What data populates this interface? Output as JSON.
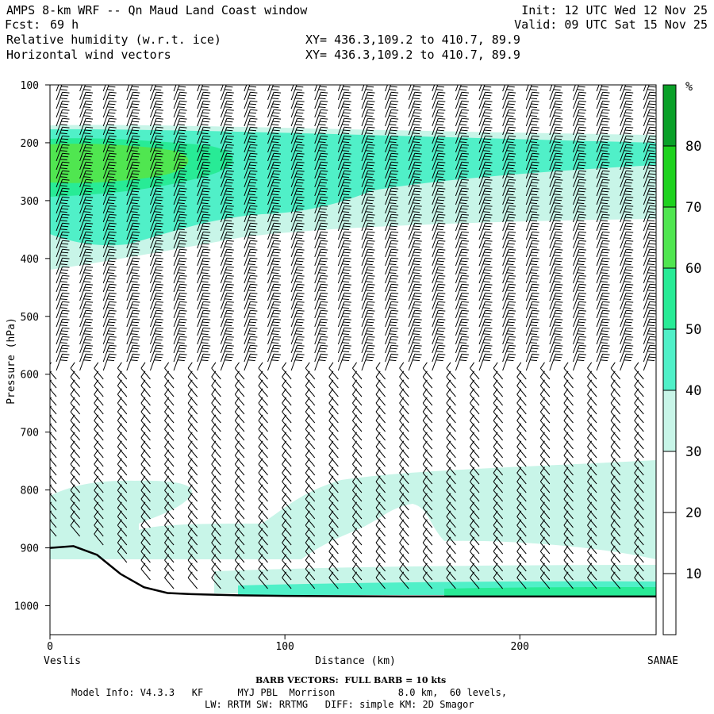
{
  "header": {
    "title": "AMPS 8-km WRF -- Qn Maud Land Coast window",
    "fcst_label": "Fcst:",
    "fcst_value": "69 h",
    "init": "Init: 12 UTC Wed 12 Nov 25",
    "valid": "Valid: 09 UTC Sat 15 Nov 25",
    "field1": "Relative humidity (w.r.t. ice)",
    "field1_xy": "XY= 436.3,109.2 to 410.7, 89.9",
    "field2": "Horizontal wind vectors",
    "field2_xy": "XY= 436.3,109.2 to 410.7, 89.9"
  },
  "footer": {
    "barb_note": "BARB VECTORS:  FULL BARB = 10 kts",
    "model_info_1": "Model Info: V4.3.3   KF      MYJ PBL  Morrison           8.0 km,  60 levels,",
    "model_info_2": "LW: RRTM SW: RRTMG   DIFF: simple KM: 2D Smagor"
  },
  "chart_data": {
    "type": "cross-section",
    "title": "Relative humidity (w.r.t. ice) and horizontal wind vectors",
    "xlabel": "Distance (km)",
    "ylabel": "Pressure (hPa)",
    "xlim": [
      0,
      258
    ],
    "ylim": [
      1050,
      100
    ],
    "x_ticks": [
      0,
      100,
      200
    ],
    "y_ticks": [
      100,
      200,
      300,
      400,
      500,
      600,
      700,
      800,
      900,
      1000
    ],
    "left_endpoint": "Veslis",
    "right_endpoint": "SANAE",
    "colorbar": {
      "unit": "%",
      "levels": [
        10,
        20,
        30,
        40,
        50,
        60,
        70,
        80
      ],
      "colors": [
        "#ffffff",
        "#ffffff",
        "#ffffff",
        "#c8f5e8",
        "#50f0c8",
        "#28eb96",
        "#50e650",
        "#1ed21e",
        "#0aa028"
      ],
      "tick_labels": [
        "10",
        "20",
        "30",
        "40",
        "50",
        "60",
        "70",
        "80"
      ]
    },
    "rh_regions": [
      {
        "name": "upper moist layer 30-40%",
        "level": 30,
        "top_hPa": 160,
        "bottom_hPa_left": 420,
        "bottom_hPa_right": 330
      },
      {
        "name": "upper moist core 40-50%",
        "level": 40,
        "top_hPa": 175,
        "bottom_hPa_left": 360,
        "bottom_hPa_right": 200
      },
      {
        "name": "upper core 60-70%",
        "level": 60,
        "top_hPa": 185,
        "bottom_hPa": 240,
        "x_range_km": [
          0,
          60
        ]
      },
      {
        "name": "low-level moist band 30-40%",
        "level": 30,
        "top_hPa": 760,
        "bottom_hPa": 900,
        "x_range_km": [
          0,
          258
        ]
      },
      {
        "name": "near-surface layer 40-50%",
        "level": 40,
        "top_hPa": 960,
        "bottom_hPa": 990,
        "x_range_km": [
          90,
          258
        ]
      }
    ],
    "terrain": {
      "x_km": [
        0,
        10,
        20,
        30,
        40,
        50,
        60,
        80,
        100,
        150,
        200,
        258
      ],
      "surface_hPa": [
        900,
        897,
        912,
        945,
        968,
        978,
        980,
        982,
        983,
        984,
        984,
        984
      ]
    },
    "wind_barbs": {
      "columns_km": [
        0,
        10,
        20,
        30,
        40,
        50,
        60,
        70,
        80,
        90,
        100,
        110,
        120,
        130,
        140,
        150,
        160,
        170,
        180,
        190,
        200,
        210,
        220,
        230,
        240,
        250
      ],
      "upper_speed_kts": 35,
      "lower_speed_kts": 10
    }
  }
}
